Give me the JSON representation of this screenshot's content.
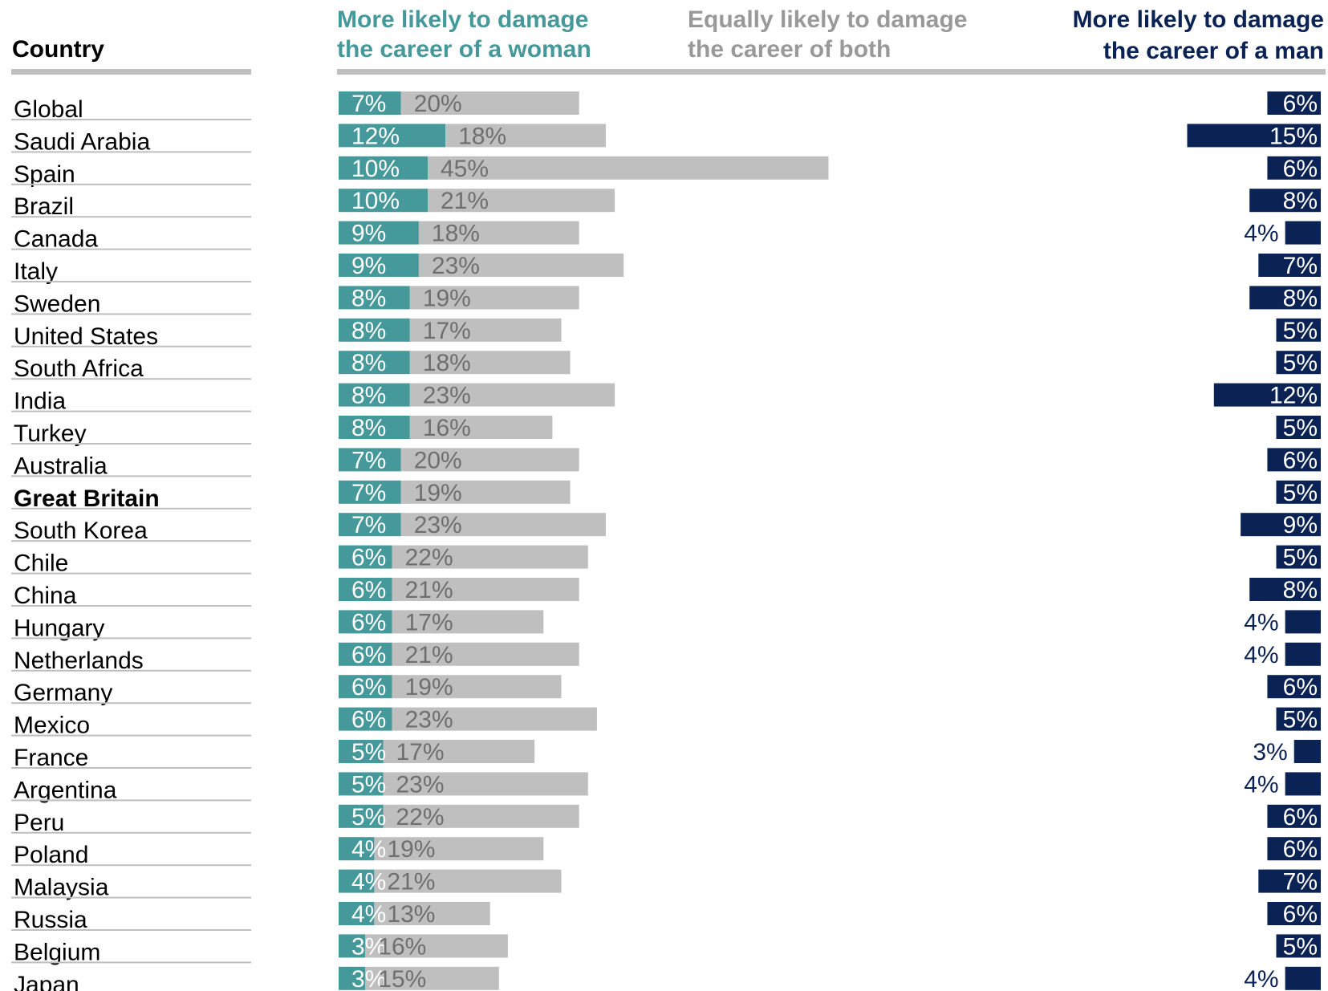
{
  "chart_data": {
    "type": "bar",
    "headers": {
      "country": "Country",
      "woman": [
        "More likely to damage",
        "the career of a woman"
      ],
      "both": [
        "Equally likely to damage",
        "the career of both"
      ],
      "man": [
        "More likely to damage",
        "the career of a man"
      ]
    },
    "highlight": "Great Britain",
    "series": [
      {
        "name": "More likely to damage the career of a woman",
        "key": "woman",
        "values": [
          7,
          12,
          10,
          10,
          9,
          9,
          8,
          8,
          8,
          8,
          8,
          7,
          7,
          7,
          6,
          6,
          6,
          6,
          6,
          6,
          5,
          5,
          5,
          4,
          4,
          4,
          3,
          3
        ]
      },
      {
        "name": "Equally likely to damage the career of both",
        "key": "both",
        "values": [
          20,
          18,
          45,
          21,
          18,
          23,
          19,
          17,
          18,
          23,
          16,
          20,
          19,
          23,
          22,
          21,
          17,
          21,
          19,
          23,
          17,
          23,
          22,
          19,
          21,
          13,
          16,
          15
        ]
      },
      {
        "name": "More likely to damage the career of a man",
        "key": "man",
        "values": [
          6,
          15,
          6,
          8,
          4,
          7,
          8,
          5,
          5,
          12,
          5,
          6,
          5,
          9,
          5,
          8,
          4,
          4,
          6,
          5,
          3,
          4,
          6,
          6,
          7,
          6,
          5,
          4
        ]
      }
    ],
    "categories": [
      "Global",
      "Saudi Arabia",
      "Spain",
      "Brazil",
      "Canada",
      "Italy",
      "Sweden",
      "United States",
      "South Africa",
      "India",
      "Turkey",
      "Australia",
      "Great Britain",
      "South Korea",
      "Chile",
      "China",
      "Hungary",
      "Netherlands",
      "Germany",
      "Mexico",
      "France",
      "Argentina",
      "Peru",
      "Poland",
      "Malaysia",
      "Russia",
      "Belgium",
      "Japan"
    ],
    "colors": {
      "woman": "#46999a",
      "both": "#bfbfbf",
      "man": "#0b2354",
      "highlight": "#e04b5c",
      "both_header": "#999999",
      "separator": "#bfbfbf"
    },
    "grid": false,
    "legend": "top"
  }
}
